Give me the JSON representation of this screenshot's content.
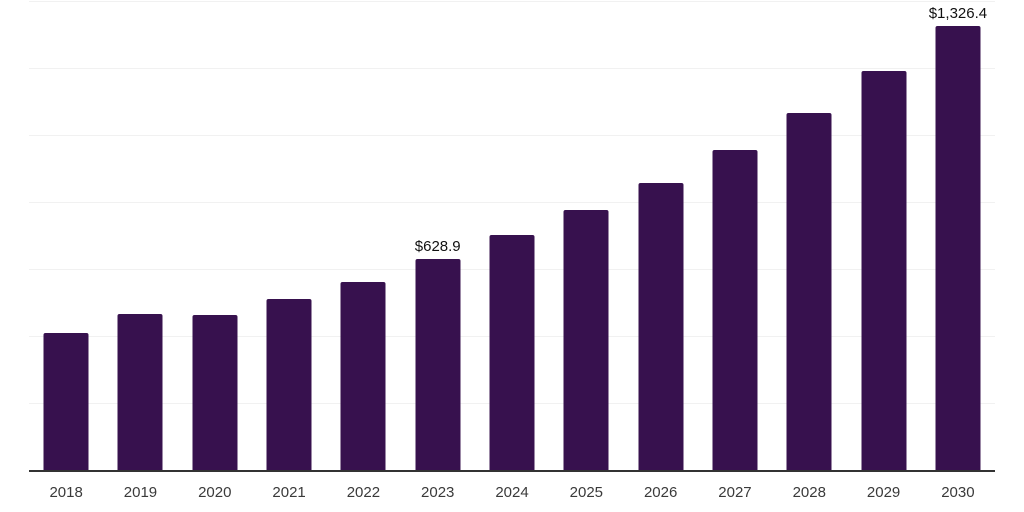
{
  "chart_data": {
    "type": "bar",
    "categories": [
      "2018",
      "2019",
      "2020",
      "2021",
      "2022",
      "2023",
      "2024",
      "2025",
      "2026",
      "2027",
      "2028",
      "2029",
      "2030"
    ],
    "values": [
      409.4,
      464.3,
      461.4,
      509.7,
      562.1,
      628.9,
      700.2,
      775.5,
      858.0,
      956.2,
      1065.2,
      1191.4,
      1326.4
    ],
    "annotations": [
      {
        "category": "2023",
        "text": "$628.9"
      },
      {
        "category": "2030",
        "text": "$1,326.4"
      }
    ],
    "title": "",
    "xlabel": "",
    "ylabel": "",
    "ylim": [
      0,
      1400
    ],
    "grid_step": 200,
    "grid": true,
    "legend_position": "none",
    "colors": {
      "bar": "#37114e",
      "axis": "#333333",
      "gridline": "#f1f1f1",
      "tick_label": "#3a3a3a",
      "value_label": "#111111",
      "background": "#ffffff"
    }
  }
}
